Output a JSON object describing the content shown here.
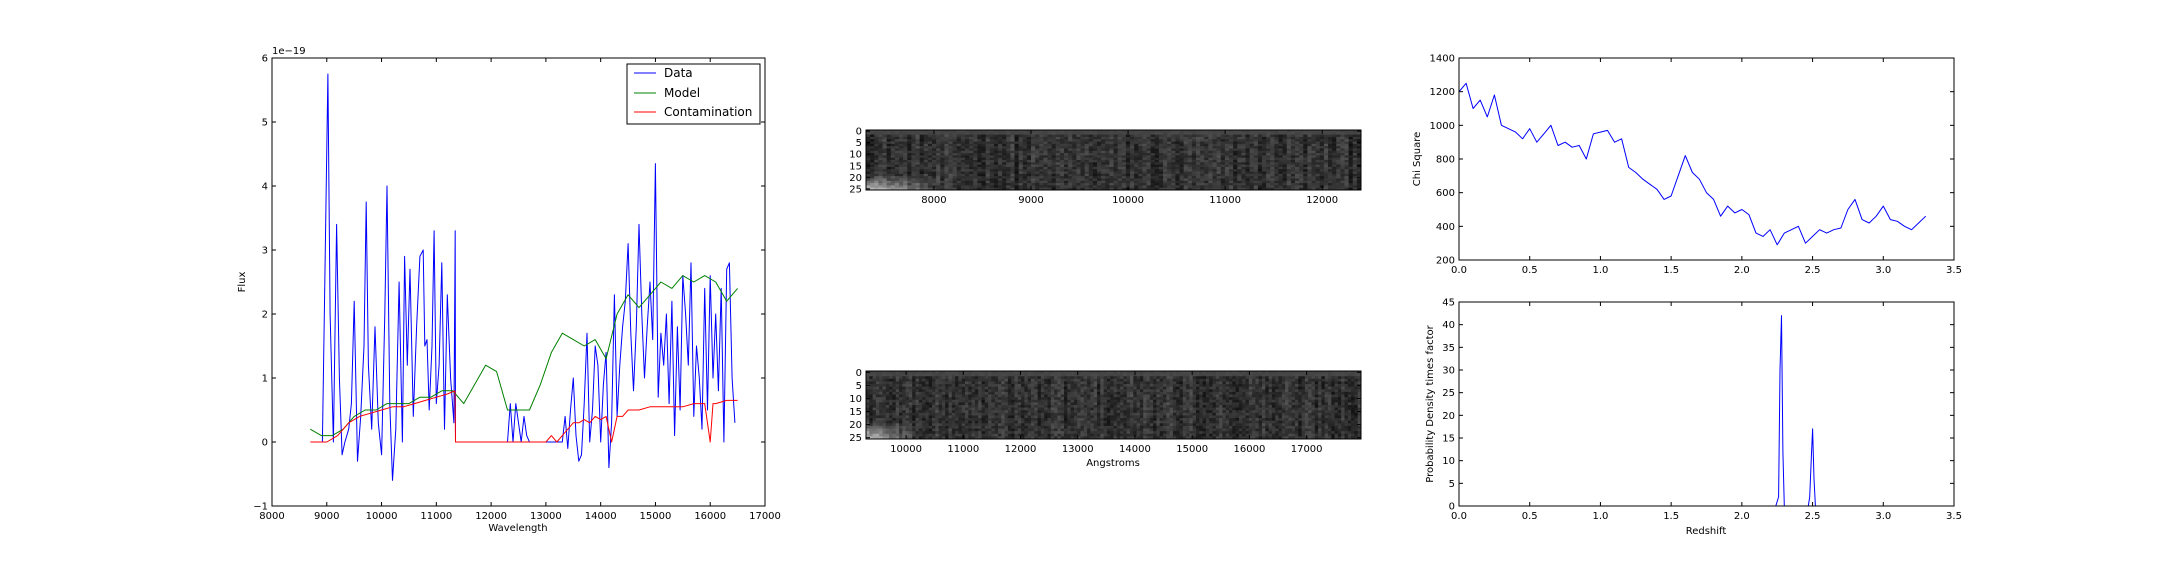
{
  "chart_data": [
    {
      "type": "line",
      "xlabel": "Wavelength",
      "ylabel": "Flux",
      "offset_text": "1e−19",
      "xlim": [
        8000,
        17000
      ],
      "ylim": [
        -1,
        6
      ],
      "xticks": [
        "8000",
        "9000",
        "10000",
        "11000",
        "12000",
        "13000",
        "14000",
        "15000",
        "16000",
        "17000"
      ],
      "yticks": [
        "−1",
        "0",
        "1",
        "2",
        "3",
        "4",
        "5",
        "6"
      ],
      "legend_position": "top-right",
      "series": [
        {
          "name": "Data",
          "color": "#0000ff",
          "x": [
            8750,
            8850,
            8920,
            8970,
            9020,
            9060,
            9120,
            9180,
            9230,
            9280,
            9330,
            9400,
            9450,
            9500,
            9560,
            9620,
            9680,
            9720,
            9760,
            9820,
            9880,
            9940,
            10000,
            10060,
            10100,
            10150,
            10200,
            10260,
            10320,
            10380,
            10420,
            10470,
            10520,
            10580,
            10640,
            10700,
            10760,
            10790,
            10830,
            10870,
            10920,
            10960,
            11000,
            11050,
            11100,
            11150,
            11200,
            11260,
            11320,
            11345,
            11350,
            12300,
            12350,
            12400,
            12450,
            12500,
            12550,
            12600,
            12650,
            12700,
            12750,
            12800,
            12850,
            12900,
            12950,
            13000,
            13050,
            13100,
            13150,
            13200,
            13250,
            13300,
            13350,
            13400,
            13450,
            13500,
            13550,
            13600,
            13650,
            13700,
            13750,
            13800,
            13850,
            13900,
            13950,
            14000,
            14050,
            14100,
            14150,
            14200,
            14250,
            14300,
            14350,
            14400,
            14450,
            14500,
            14550,
            14600,
            14650,
            14700,
            14750,
            14800,
            14850,
            14900,
            14950,
            15000,
            15050,
            15100,
            15150,
            15200,
            15250,
            15300,
            15350,
            15400,
            15450,
            15500,
            15550,
            15600,
            15650,
            15700,
            15750,
            15800,
            15850,
            15900,
            15950,
            16000,
            16050,
            16100,
            16150,
            16200,
            16250,
            16300,
            16350,
            16400,
            16450
          ],
          "y": [
            0.0,
            0.0,
            0.0,
            2.8,
            5.75,
            2.0,
            0.0,
            3.4,
            1.0,
            -0.2,
            0.0,
            0.2,
            0.6,
            2.2,
            -0.3,
            0.4,
            1.5,
            3.75,
            1.2,
            0.2,
            1.8,
            0.3,
            -0.2,
            2.0,
            4.0,
            0.6,
            -0.6,
            0.2,
            2.5,
            0.0,
            2.9,
            1.2,
            2.7,
            0.4,
            1.8,
            2.9,
            3.0,
            1.5,
            1.6,
            0.5,
            1.5,
            3.3,
            0.6,
            1.2,
            2.8,
            0.2,
            2.3,
            1.0,
            0.3,
            3.3,
            0.0,
            0.0,
            0.6,
            0.0,
            0.6,
            0.3,
            0.0,
            0.4,
            0.1,
            0.0,
            0.0,
            0.0,
            0.0,
            0.0,
            0.0,
            0.0,
            0.0,
            0.0,
            0.0,
            0.0,
            0.0,
            0.0,
            0.4,
            -0.1,
            0.5,
            1.0,
            0.1,
            -0.3,
            -0.2,
            0.6,
            1.7,
            0.0,
            0.5,
            1.5,
            1.2,
            0.0,
            0.9,
            1.4,
            -0.4,
            0.3,
            2.3,
            0.4,
            1.2,
            1.8,
            2.2,
            3.1,
            1.7,
            0.8,
            1.8,
            3.4,
            2.0,
            1.0,
            1.8,
            2.5,
            1.6,
            4.35,
            0.7,
            1.7,
            1.2,
            2.0,
            0.6,
            2.2,
            0.1,
            1.8,
            0.5,
            2.6,
            2.0,
            1.2,
            2.8,
            0.4,
            1.5,
            1.0,
            0.2,
            2.4,
            0.5,
            2.6,
            1.0,
            2.0,
            0.8,
            2.4,
            0.0,
            2.7,
            2.8,
            1.0,
            0.3
          ],
          "data_max_visible_x": 16450
        },
        {
          "name": "Model",
          "color": "#008000",
          "x": [
            8700,
            8900,
            9100,
            9300,
            9500,
            9700,
            9900,
            10100,
            10300,
            10500,
            10700,
            10900,
            11100,
            11300,
            11500,
            11700,
            11900,
            12100,
            12300,
            12500,
            12700,
            12900,
            13100,
            13300,
            13500,
            13700,
            13900,
            14100,
            14300,
            14500,
            14700,
            14900,
            15100,
            15300,
            15500,
            15700,
            15900,
            16100,
            16300,
            16500
          ],
          "y": [
            0.2,
            0.1,
            0.1,
            0.2,
            0.4,
            0.5,
            0.5,
            0.6,
            0.6,
            0.6,
            0.7,
            0.7,
            0.8,
            0.8,
            0.6,
            0.9,
            1.2,
            1.1,
            0.5,
            0.5,
            0.5,
            0.9,
            1.4,
            1.7,
            1.6,
            1.5,
            1.6,
            1.3,
            2.0,
            2.3,
            2.1,
            2.3,
            2.5,
            2.4,
            2.6,
            2.5,
            2.6,
            2.5,
            2.2,
            2.4
          ]
        },
        {
          "name": "Contamination",
          "color": "#ff0000",
          "x": [
            8700,
            9000,
            9200,
            9400,
            9600,
            9800,
            10000,
            10200,
            10400,
            10600,
            10800,
            11000,
            11200,
            11340,
            11350,
            13000,
            13100,
            13200,
            13300,
            13400,
            13500,
            13600,
            13700,
            13800,
            13900,
            14000,
            14100,
            14200,
            14300,
            14400,
            14500,
            14700,
            14900,
            15100,
            15300,
            15500,
            15700,
            15900,
            16000,
            16050,
            16100,
            16300,
            16500
          ],
          "y": [
            0.0,
            0.0,
            0.1,
            0.3,
            0.4,
            0.45,
            0.5,
            0.55,
            0.55,
            0.6,
            0.65,
            0.7,
            0.75,
            0.8,
            0.0,
            0.0,
            0.1,
            0.0,
            0.1,
            0.2,
            0.3,
            0.3,
            0.35,
            0.3,
            0.4,
            0.35,
            0.4,
            0.0,
            0.4,
            0.4,
            0.5,
            0.5,
            0.55,
            0.55,
            0.55,
            0.55,
            0.6,
            0.6,
            0.0,
            0.6,
            0.6,
            0.65,
            0.65
          ]
        }
      ]
    },
    {
      "type": "heatmap",
      "xlabel": "",
      "xlim": [
        7300,
        12400
      ],
      "ylim": [
        25,
        0
      ],
      "xticks": [
        "8000",
        "9000",
        "10000",
        "11000",
        "12000"
      ],
      "yticks": [
        "0",
        "5",
        "10",
        "15",
        "20",
        "25"
      ],
      "rows": 26,
      "cols": 120,
      "colormap": "gray"
    },
    {
      "type": "heatmap",
      "xlabel": "Angstroms",
      "xlim": [
        9300,
        17950
      ],
      "ylim": [
        25,
        0
      ],
      "xticks": [
        "10000",
        "11000",
        "12000",
        "13000",
        "14000",
        "15000",
        "16000",
        "17000"
      ],
      "yticks": [
        "0",
        "5",
        "10",
        "15",
        "20",
        "25"
      ],
      "rows": 26,
      "cols": 150,
      "colormap": "gray"
    },
    {
      "type": "line",
      "xlabel": "",
      "ylabel": "Chi Square",
      "xlim": [
        0,
        3.5
      ],
      "ylim": [
        200,
        1400
      ],
      "xticks": [
        "0.0",
        "0.5",
        "1.0",
        "1.5",
        "2.0",
        "2.5",
        "3.0",
        "3.5"
      ],
      "yticks": [
        "200",
        "400",
        "600",
        "800",
        "1000",
        "1200",
        "1400"
      ],
      "series": [
        {
          "color": "#0000ff",
          "x": [
            0.0,
            0.05,
            0.1,
            0.15,
            0.2,
            0.25,
            0.3,
            0.35,
            0.4,
            0.45,
            0.5,
            0.55,
            0.6,
            0.65,
            0.7,
            0.75,
            0.8,
            0.85,
            0.9,
            0.95,
            1.0,
            1.05,
            1.1,
            1.15,
            1.2,
            1.25,
            1.3,
            1.35,
            1.4,
            1.45,
            1.5,
            1.55,
            1.6,
            1.65,
            1.7,
            1.75,
            1.8,
            1.85,
            1.9,
            1.95,
            2.0,
            2.05,
            2.1,
            2.15,
            2.2,
            2.25,
            2.3,
            2.35,
            2.4,
            2.45,
            2.5,
            2.55,
            2.6,
            2.65,
            2.7,
            2.75,
            2.8,
            2.85,
            2.9,
            2.95,
            3.0,
            3.05,
            3.1,
            3.15,
            3.2,
            3.25,
            3.3
          ],
          "y": [
            1200,
            1250,
            1100,
            1150,
            1050,
            1180,
            1000,
            980,
            960,
            920,
            980,
            900,
            950,
            1000,
            880,
            900,
            870,
            880,
            800,
            950,
            960,
            970,
            900,
            920,
            750,
            720,
            680,
            650,
            620,
            560,
            580,
            700,
            820,
            720,
            680,
            600,
            560,
            460,
            520,
            480,
            500,
            470,
            360,
            340,
            380,
            290,
            360,
            380,
            400,
            300,
            340,
            380,
            360,
            380,
            390,
            500,
            560,
            440,
            420,
            460,
            520,
            440,
            430,
            400,
            380,
            420,
            460
          ]
        }
      ]
    },
    {
      "type": "line",
      "xlabel": "Redshift",
      "ylabel": "Probability Density times factor",
      "xlim": [
        0,
        3.5
      ],
      "ylim": [
        0,
        45
      ],
      "xticks": [
        "0.0",
        "0.5",
        "1.0",
        "1.5",
        "2.0",
        "2.5",
        "3.0",
        "3.5"
      ],
      "yticks": [
        "0",
        "5",
        "10",
        "15",
        "20",
        "25",
        "30",
        "35",
        "40",
        "45"
      ],
      "series": [
        {
          "color": "#0000ff",
          "x": [
            0.0,
            2.24,
            2.26,
            2.27,
            2.28,
            2.29,
            2.3,
            2.47,
            2.48,
            2.49,
            2.5,
            2.51,
            2.52,
            3.3
          ],
          "y": [
            0,
            0,
            2,
            30,
            42,
            12,
            0,
            0,
            2,
            10,
            17,
            6,
            0,
            0
          ]
        }
      ]
    }
  ]
}
